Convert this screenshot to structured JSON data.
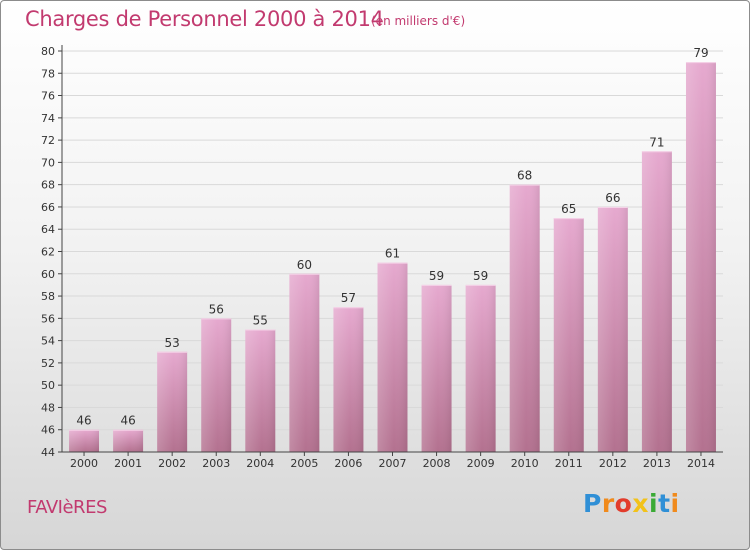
{
  "header": {
    "title": "Charges de Personnel 2000 à 2014",
    "subtitle": "(en milliers d'€)"
  },
  "footer": {
    "commune": "FAVIèRES",
    "brand": "Proxiti",
    "brand_colors": [
      "#2f8fd6",
      "#f08a1c",
      "#e23c2c",
      "#f2c21a",
      "#3aaa35",
      "#2f8fd6",
      "#f08a1c"
    ]
  },
  "colors": {
    "bar_top": "#e6a9cf",
    "bar_bottom": "#b3718f",
    "title": "#c23a6f",
    "grid": "#d9d9d9"
  },
  "chart_data": {
    "type": "bar",
    "categories": [
      "2000",
      "2001",
      "2002",
      "2003",
      "2004",
      "2005",
      "2006",
      "2007",
      "2008",
      "2009",
      "2010",
      "2011",
      "2012",
      "2013",
      "2014"
    ],
    "values": [
      46,
      46,
      53,
      56,
      55,
      60,
      57,
      61,
      59,
      59,
      68,
      65,
      66,
      71,
      79
    ],
    "ylim": [
      44,
      80
    ],
    "yticks": [
      44,
      46,
      48,
      50,
      52,
      54,
      56,
      58,
      60,
      62,
      64,
      66,
      68,
      70,
      72,
      74,
      76,
      78,
      80
    ],
    "grid": true,
    "data_labels": true
  }
}
